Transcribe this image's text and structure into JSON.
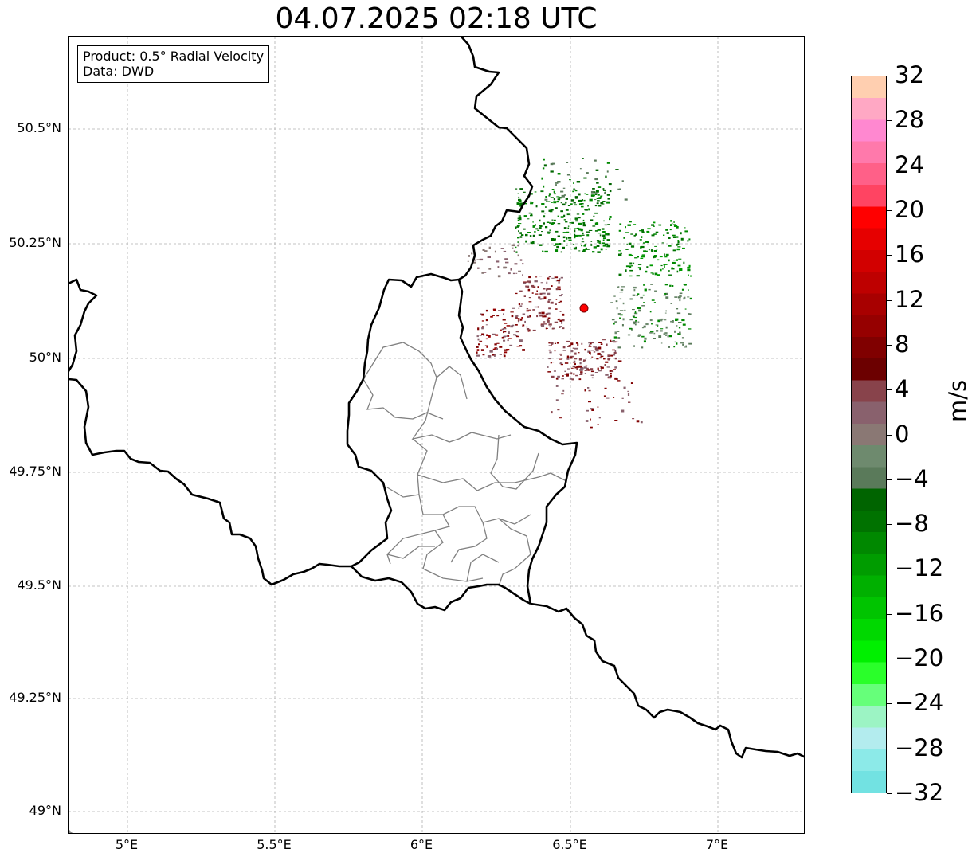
{
  "title": "04.07.2025 02:18 UTC",
  "info": {
    "product": "Product: 0.5° Radial Velocity",
    "source": "Data: DWD"
  },
  "axes": {
    "lat_ticks": [
      "50.5°N",
      "50.25°N",
      "50°N",
      "49.75°N",
      "49.5°N",
      "49.25°N",
      "49°N"
    ],
    "lon_ticks": [
      "5°E",
      "5.5°E",
      "6°E",
      "6.5°E",
      "7°E"
    ]
  },
  "colorbar": {
    "label": "m/s",
    "ticks": [
      "32",
      "28",
      "24",
      "20",
      "16",
      "12",
      "8",
      "4",
      "0",
      "−4",
      "−8",
      "−12",
      "−16",
      "−20",
      "−24",
      "−28",
      "−32"
    ],
    "colors": [
      "#ffcfb0",
      "#ffa8c4",
      "#ff88d0",
      "#ff79ab",
      "#ff6088",
      "#ff4462",
      "#ff0000",
      "#e60000",
      "#d20000",
      "#be0000",
      "#a80000",
      "#960000",
      "#800000",
      "#6c0000",
      "#88434b",
      "#89616d",
      "#8a7874",
      "#6e8a6e",
      "#5a7a5a",
      "#006400",
      "#007200",
      "#008800",
      "#009c00",
      "#00b000",
      "#00c400",
      "#00d800",
      "#00f000",
      "#2aff2a",
      "#66ff7a",
      "#9cf4c4",
      "#b3ecee",
      "#8ceae8",
      "#72e2e2"
    ],
    "min": -32,
    "max": 32
  },
  "radar_site": {
    "lon": 6.548,
    "lat": 50.11,
    "color": "#ff0000"
  }
}
